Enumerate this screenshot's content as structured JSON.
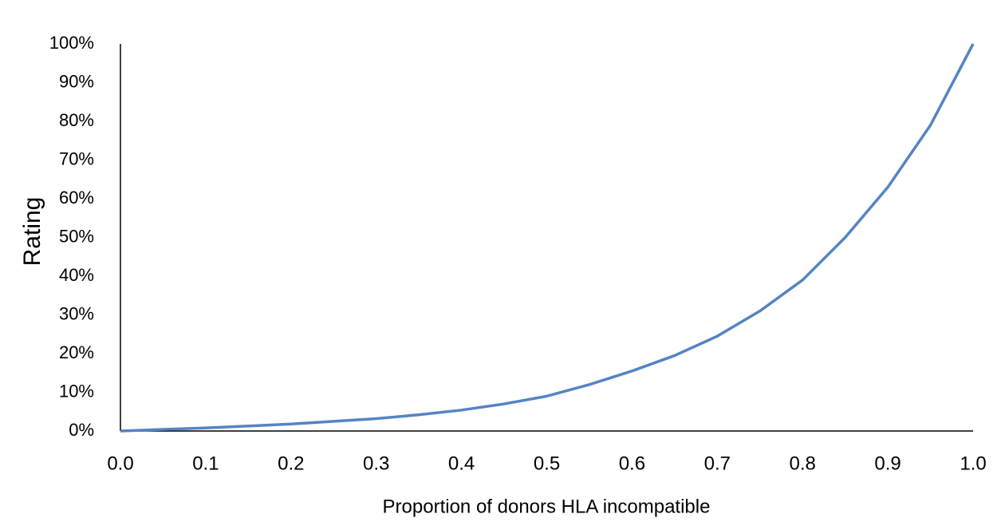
{
  "chart_data": {
    "type": "line",
    "xlabel": "Proportion of donors HLA incompatible",
    "ylabel": "Rating",
    "x": [
      0,
      0.05,
      0.1,
      0.15,
      0.2,
      0.25,
      0.3,
      0.35,
      0.4,
      0.45,
      0.5,
      0.55,
      0.6,
      0.65,
      0.7,
      0.75,
      0.8,
      0.85,
      0.9,
      0.95,
      1.0
    ],
    "series": [
      {
        "color": "#5584c4",
        "values": [
          0,
          0.4,
          0.8,
          1.3,
          1.8,
          2.5,
          3.2,
          4.2,
          5.4,
          7,
          9,
          12,
          15.5,
          19.5,
          24.5,
          31,
          39,
          50,
          63,
          79,
          100
        ]
      }
    ],
    "xlim": [
      0,
      1
    ],
    "xticks": [
      {
        "value": 0,
        "label": "0.0"
      },
      0.1,
      0.2,
      0.3,
      0.4,
      0.5,
      0.6,
      0.7,
      0.8,
      0.9,
      {
        "value": 1,
        "label": "1.0"
      }
    ],
    "ylim": [
      0,
      100
    ],
    "yticks": [
      {
        "value": 0,
        "label": "0%"
      },
      {
        "value": 10,
        "label": "10%"
      },
      {
        "value": 20,
        "label": "20%"
      },
      {
        "value": 30,
        "label": "30%"
      },
      {
        "value": 40,
        "label": "40%"
      },
      {
        "value": 50,
        "label": "50%"
      },
      {
        "value": 60,
        "label": "60%"
      },
      {
        "value": 70,
        "label": "70%"
      },
      {
        "value": 80,
        "label": "80%"
      },
      {
        "value": 90,
        "label": "90%"
      },
      {
        "value": 100,
        "label": "100%"
      }
    ],
    "grid": false
  }
}
